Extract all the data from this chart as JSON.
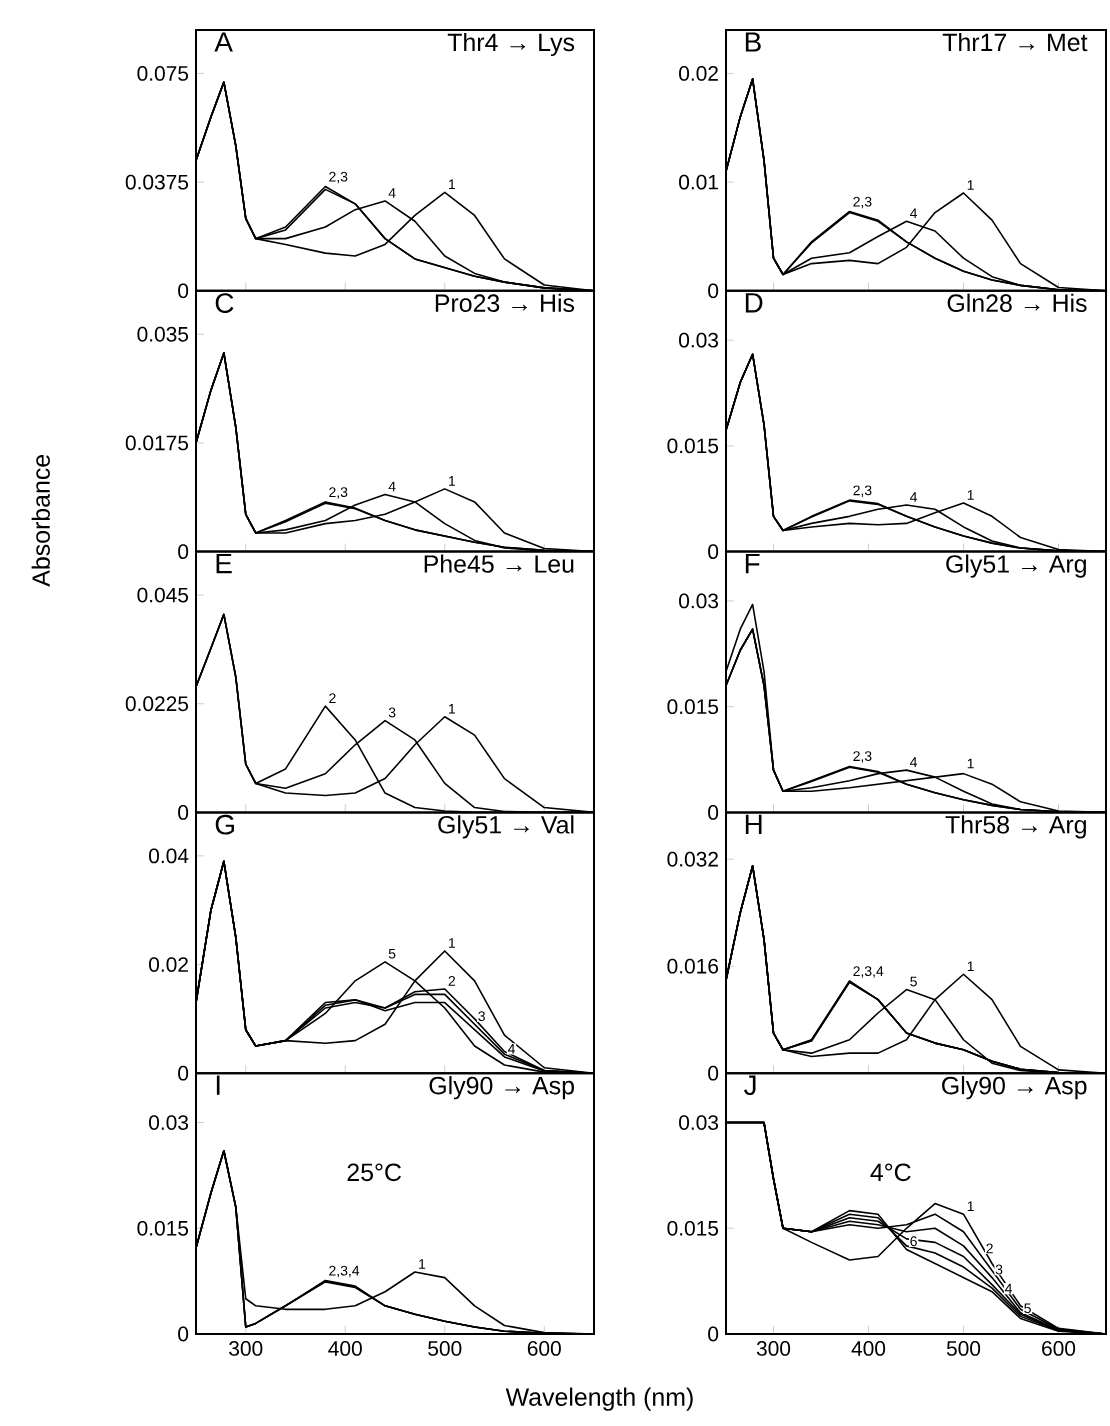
{
  "chart_data": [
    {
      "type": "line",
      "title": "Thr4 → Lys",
      "annotations": [
        "A",
        {
          "text": "2,3",
          "x": 380,
          "y": 0.036
        },
        {
          "text": "4",
          "x": 440,
          "y": 0.031
        },
        {
          "text": "1",
          "x": 500,
          "y": 0.034
        }
      ],
      "x": [
        250,
        265,
        278,
        290,
        300,
        310,
        340,
        380,
        410,
        440,
        470,
        500,
        530,
        560,
        600,
        650
      ],
      "xlim": [
        250,
        650
      ],
      "xticks": [
        300,
        400,
        500,
        600
      ],
      "ylim": [
        0,
        0.09
      ],
      "yticks": [
        0,
        0.0375,
        0.075
      ],
      "tick_labels": "y",
      "series": [
        {
          "color": "#000000",
          "values": [
            0.045,
            0.06,
            0.072,
            0.05,
            0.025,
            0.018,
            0.016,
            0.013,
            0.012,
            0.016,
            0.026,
            0.034,
            0.026,
            0.011,
            0.002,
            0
          ]
        },
        {
          "color": "#000000",
          "values": [
            0.045,
            0.06,
            0.072,
            0.05,
            0.025,
            0.018,
            0.022,
            0.036,
            0.03,
            0.018,
            0.011,
            0.008,
            0.005,
            0.003,
            0.001,
            0
          ]
        },
        {
          "color": "#000000",
          "values": [
            0.045,
            0.06,
            0.072,
            0.05,
            0.025,
            0.018,
            0.021,
            0.035,
            0.03,
            0.018,
            0.011,
            0.008,
            0.005,
            0.003,
            0.001,
            0
          ]
        },
        {
          "color": "#000000",
          "values": [
            0.045,
            0.06,
            0.072,
            0.05,
            0.025,
            0.018,
            0.018,
            0.022,
            0.028,
            0.031,
            0.024,
            0.012,
            0.006,
            0.003,
            0.001,
            0
          ]
        }
      ]
    },
    {
      "type": "line",
      "title": "Thr17 → Met",
      "annotations": [
        "B",
        {
          "text": "2,3",
          "x": 380,
          "y": 0.0073
        },
        {
          "text": "4",
          "x": 440,
          "y": 0.0064
        },
        {
          "text": "1",
          "x": 500,
          "y": 0.009
        }
      ],
      "x": [
        250,
        265,
        278,
        290,
        300,
        310,
        340,
        380,
        410,
        440,
        470,
        500,
        530,
        560,
        600,
        650
      ],
      "xlim": [
        250,
        650
      ],
      "xticks": [
        300,
        400,
        500,
        600
      ],
      "ylim": [
        0,
        0.024
      ],
      "yticks": [
        0,
        0.01,
        0.02
      ],
      "tick_labels": "y",
      "series": [
        {
          "color": "#000000",
          "values": [
            0.011,
            0.016,
            0.0195,
            0.012,
            0.003,
            0.0015,
            0.0025,
            0.0028,
            0.0025,
            0.004,
            0.0072,
            0.009,
            0.0065,
            0.0025,
            0.0003,
            0
          ]
        },
        {
          "color": "#000000",
          "values": [
            0.011,
            0.016,
            0.0195,
            0.012,
            0.003,
            0.0015,
            0.0045,
            0.0073,
            0.0065,
            0.0045,
            0.003,
            0.0018,
            0.001,
            0.0005,
            0.0001,
            0
          ]
        },
        {
          "color": "#000000",
          "values": [
            0.011,
            0.016,
            0.0195,
            0.012,
            0.003,
            0.0015,
            0.0044,
            0.0072,
            0.0064,
            0.0045,
            0.003,
            0.0018,
            0.001,
            0.0005,
            0.0001,
            0
          ]
        },
        {
          "color": "#000000",
          "values": [
            0.011,
            0.016,
            0.0195,
            0.012,
            0.003,
            0.0015,
            0.003,
            0.0035,
            0.005,
            0.0064,
            0.0055,
            0.003,
            0.0013,
            0.0005,
            0.0001,
            0
          ]
        }
      ]
    },
    {
      "type": "line",
      "title": "Pro23 → His",
      "annotations": [
        "C",
        {
          "text": "2,3",
          "x": 380,
          "y": 0.008
        },
        {
          "text": "4",
          "x": 440,
          "y": 0.0092
        },
        {
          "text": "1",
          "x": 500,
          "y": 0.0101
        }
      ],
      "x": [
        250,
        265,
        278,
        290,
        300,
        310,
        340,
        380,
        410,
        440,
        470,
        500,
        530,
        560,
        600,
        650
      ],
      "xlim": [
        250,
        650
      ],
      "xticks": [
        300,
        400,
        500,
        600
      ],
      "ylim": [
        0,
        0.042
      ],
      "yticks": [
        0,
        0.0175,
        0.035
      ],
      "tick_labels": "y",
      "series": [
        {
          "color": "#000000",
          "values": [
            0.0175,
            0.026,
            0.032,
            0.02,
            0.006,
            0.003,
            0.003,
            0.0045,
            0.005,
            0.006,
            0.008,
            0.0101,
            0.008,
            0.003,
            0.0005,
            0
          ]
        },
        {
          "color": "#000000",
          "values": [
            0.0175,
            0.026,
            0.032,
            0.02,
            0.006,
            0.003,
            0.005,
            0.008,
            0.007,
            0.005,
            0.0035,
            0.0025,
            0.0015,
            0.0007,
            0.0002,
            0
          ]
        },
        {
          "color": "#000000",
          "values": [
            0.0175,
            0.026,
            0.032,
            0.02,
            0.006,
            0.003,
            0.0048,
            0.0078,
            0.0069,
            0.005,
            0.0035,
            0.0025,
            0.0015,
            0.0007,
            0.0002,
            0
          ]
        },
        {
          "color": "#000000",
          "values": [
            0.0175,
            0.026,
            0.032,
            0.02,
            0.006,
            0.003,
            0.0035,
            0.005,
            0.0075,
            0.0092,
            0.008,
            0.0045,
            0.0018,
            0.0006,
            0.0001,
            0
          ]
        }
      ]
    },
    {
      "type": "line",
      "title": "Gln28 → His",
      "annotations": [
        "D",
        {
          "text": "2,3",
          "x": 380,
          "y": 0.0073
        },
        {
          "text": "4",
          "x": 440,
          "y": 0.0066
        },
        {
          "text": "1",
          "x": 500,
          "y": 0.0069
        }
      ],
      "x": [
        250,
        265,
        278,
        290,
        300,
        310,
        340,
        380,
        410,
        440,
        470,
        500,
        530,
        560,
        600,
        650
      ],
      "xlim": [
        250,
        650
      ],
      "xticks": [
        300,
        400,
        500,
        600
      ],
      "ylim": [
        0,
        0.037
      ],
      "yticks": [
        0,
        0.015,
        0.03
      ],
      "tick_labels": "y",
      "series": [
        {
          "color": "#000000",
          "values": [
            0.0172,
            0.024,
            0.028,
            0.018,
            0.005,
            0.003,
            0.0035,
            0.004,
            0.0038,
            0.004,
            0.0055,
            0.0069,
            0.005,
            0.002,
            0.0003,
            0
          ]
        },
        {
          "color": "#000000",
          "values": [
            0.0172,
            0.024,
            0.028,
            0.018,
            0.005,
            0.003,
            0.005,
            0.0073,
            0.0068,
            0.005,
            0.0035,
            0.0022,
            0.0012,
            0.0005,
            0.0001,
            0
          ]
        },
        {
          "color": "#000000",
          "values": [
            0.0172,
            0.024,
            0.028,
            0.018,
            0.005,
            0.003,
            0.0049,
            0.0072,
            0.0067,
            0.005,
            0.0035,
            0.0022,
            0.0012,
            0.0005,
            0.0001,
            0
          ]
        },
        {
          "color": "#000000",
          "values": [
            0.0172,
            0.024,
            0.028,
            0.018,
            0.005,
            0.003,
            0.004,
            0.005,
            0.006,
            0.0066,
            0.006,
            0.0035,
            0.0015,
            0.0005,
            0.0001,
            0
          ]
        }
      ]
    },
    {
      "type": "line",
      "title": "Phe45 → Leu",
      "ylabel": "Absorbance",
      "annotations": [
        "E",
        {
          "text": "2",
          "x": 380,
          "y": 0.022
        },
        {
          "text": "3",
          "x": 440,
          "y": 0.019
        },
        {
          "text": "1",
          "x": 500,
          "y": 0.0198
        }
      ],
      "x": [
        250,
        265,
        278,
        290,
        300,
        310,
        340,
        380,
        410,
        440,
        470,
        500,
        530,
        560,
        600,
        650
      ],
      "xlim": [
        250,
        650
      ],
      "xticks": [
        300,
        400,
        500,
        600
      ],
      "ylim": [
        0,
        0.054
      ],
      "yticks": [
        0,
        0.0225,
        0.045
      ],
      "tick_labels": "y",
      "series": [
        {
          "color": "#000000",
          "values": [
            0.026,
            0.034,
            0.041,
            0.028,
            0.01,
            0.006,
            0.004,
            0.0035,
            0.004,
            0.007,
            0.014,
            0.0198,
            0.016,
            0.007,
            0.001,
            0
          ]
        },
        {
          "color": "#000000",
          "values": [
            0.026,
            0.034,
            0.041,
            0.028,
            0.01,
            0.006,
            0.009,
            0.022,
            0.015,
            0.004,
            0.001,
            0.0003,
            0,
            0,
            0,
            0
          ]
        },
        {
          "color": "#000000",
          "values": [
            0.026,
            0.034,
            0.041,
            0.028,
            0.01,
            0.006,
            0.005,
            0.008,
            0.014,
            0.019,
            0.015,
            0.006,
            0.001,
            0.0002,
            0,
            0
          ]
        }
      ]
    },
    {
      "type": "line",
      "title": "Gly51 → Arg",
      "annotations": [
        "F",
        {
          "text": "2,3",
          "x": 380,
          "y": 0.0066
        },
        {
          "text": "4",
          "x": 440,
          "y": 0.006
        },
        {
          "text": "1",
          "x": 500,
          "y": 0.0058
        }
      ],
      "x": [
        250,
        265,
        278,
        290,
        300,
        310,
        340,
        380,
        410,
        440,
        470,
        500,
        530,
        560,
        600,
        650
      ],
      "xlim": [
        250,
        650
      ],
      "xticks": [
        300,
        400,
        500,
        600
      ],
      "ylim": [
        0,
        0.037
      ],
      "yticks": [
        0,
        0.015,
        0.03
      ],
      "tick_labels": "y",
      "series": [
        {
          "color": "#000000",
          "values": [
            0.02,
            0.026,
            0.0295,
            0.02,
            0.006,
            0.003,
            0.003,
            0.0035,
            0.004,
            0.0045,
            0.005,
            0.0055,
            0.004,
            0.0015,
            0.0002,
            0
          ]
        },
        {
          "color": "#000000",
          "values": [
            0.018,
            0.023,
            0.026,
            0.018,
            0.006,
            0.003,
            0.0045,
            0.0065,
            0.0058,
            0.004,
            0.0028,
            0.0018,
            0.001,
            0.0004,
            0.0001,
            0
          ]
        },
        {
          "color": "#000000",
          "values": [
            0.018,
            0.023,
            0.026,
            0.018,
            0.006,
            0.003,
            0.0044,
            0.0064,
            0.0057,
            0.004,
            0.0028,
            0.0018,
            0.001,
            0.0004,
            0.0001,
            0
          ]
        },
        {
          "color": "#000000",
          "values": [
            0.018,
            0.023,
            0.026,
            0.018,
            0.006,
            0.003,
            0.0035,
            0.0045,
            0.0055,
            0.006,
            0.005,
            0.003,
            0.0012,
            0.0004,
            0.0001,
            0
          ]
        }
      ]
    },
    {
      "type": "line",
      "title": "Gly51 → Val",
      "annotations": [
        "G",
        {
          "text": "5",
          "x": 440,
          "y": 0.0205
        },
        {
          "text": "1",
          "x": 500,
          "y": 0.0225
        },
        {
          "text": "2",
          "x": 500,
          "y": 0.0155
        },
        {
          "text": "3",
          "x": 530,
          "y": 0.009
        },
        {
          "text": "4",
          "x": 560,
          "y": 0.003
        }
      ],
      "x": [
        250,
        265,
        278,
        290,
        300,
        310,
        340,
        380,
        410,
        440,
        470,
        500,
        530,
        560,
        600,
        650
      ],
      "xlim": [
        250,
        650
      ],
      "xticks": [
        300,
        400,
        500,
        600
      ],
      "ylim": [
        0,
        0.048
      ],
      "yticks": [
        0,
        0.02,
        0.04
      ],
      "tick_labels": "y",
      "series": [
        {
          "color": "#000000",
          "values": [
            0.013,
            0.03,
            0.039,
            0.025,
            0.008,
            0.005,
            0.006,
            0.0055,
            0.006,
            0.009,
            0.017,
            0.0225,
            0.017,
            0.007,
            0.001,
            0
          ]
        },
        {
          "color": "#000000",
          "values": [
            0.013,
            0.03,
            0.039,
            0.025,
            0.008,
            0.005,
            0.006,
            0.012,
            0.013,
            0.012,
            0.015,
            0.0155,
            0.01,
            0.004,
            0.0005,
            0
          ]
        },
        {
          "color": "#000000",
          "values": [
            0.013,
            0.03,
            0.039,
            0.025,
            0.008,
            0.005,
            0.006,
            0.0125,
            0.0135,
            0.012,
            0.0145,
            0.0145,
            0.009,
            0.0035,
            0.0005,
            0
          ]
        },
        {
          "color": "#000000",
          "values": [
            0.013,
            0.03,
            0.039,
            0.025,
            0.008,
            0.005,
            0.006,
            0.013,
            0.0135,
            0.0115,
            0.013,
            0.013,
            0.008,
            0.003,
            0.0004,
            0
          ]
        },
        {
          "color": "#000000",
          "values": [
            0.013,
            0.03,
            0.039,
            0.025,
            0.008,
            0.005,
            0.006,
            0.011,
            0.017,
            0.0205,
            0.017,
            0.012,
            0.005,
            0.0015,
            0.0002,
            0
          ]
        }
      ]
    },
    {
      "type": "line",
      "title": "Thr58 → Arg",
      "annotations": [
        "H",
        {
          "text": "2,3,4",
          "x": 380,
          "y": 0.0138
        },
        {
          "text": "5",
          "x": 440,
          "y": 0.0125
        },
        {
          "text": "1",
          "x": 500,
          "y": 0.0148
        }
      ],
      "x": [
        250,
        265,
        278,
        290,
        300,
        310,
        340,
        380,
        410,
        440,
        470,
        500,
        530,
        560,
        600,
        650
      ],
      "xlim": [
        250,
        650
      ],
      "xticks": [
        300,
        400,
        500,
        600
      ],
      "ylim": [
        0,
        0.039
      ],
      "yticks": [
        0,
        0.016,
        0.032
      ],
      "tick_labels": "y",
      "series": [
        {
          "color": "#000000",
          "values": [
            0.0139,
            0.024,
            0.031,
            0.02,
            0.006,
            0.0035,
            0.0025,
            0.003,
            0.003,
            0.005,
            0.011,
            0.0148,
            0.011,
            0.004,
            0.0005,
            0
          ]
        },
        {
          "color": "#000000",
          "values": [
            0.0139,
            0.024,
            0.031,
            0.02,
            0.006,
            0.0035,
            0.005,
            0.0138,
            0.011,
            0.006,
            0.0045,
            0.0035,
            0.0018,
            0.0006,
            0.0001,
            0
          ]
        },
        {
          "color": "#000000",
          "values": [
            0.0139,
            0.024,
            0.031,
            0.02,
            0.006,
            0.0035,
            0.0049,
            0.0137,
            0.011,
            0.006,
            0.0045,
            0.0035,
            0.0018,
            0.0006,
            0.0001,
            0
          ]
        },
        {
          "color": "#000000",
          "values": [
            0.0139,
            0.024,
            0.031,
            0.02,
            0.006,
            0.0035,
            0.0048,
            0.0136,
            0.011,
            0.006,
            0.0045,
            0.0035,
            0.0018,
            0.0006,
            0.0001,
            0
          ]
        },
        {
          "color": "#000000",
          "values": [
            0.0139,
            0.024,
            0.031,
            0.02,
            0.006,
            0.0035,
            0.003,
            0.005,
            0.009,
            0.0125,
            0.011,
            0.005,
            0.0015,
            0.0004,
            0,
            0
          ]
        }
      ]
    },
    {
      "type": "line",
      "title": "Gly90 → Asp",
      "subtitle": "25°C",
      "xlabel": "Wavelength (nm)",
      "annotations": [
        "I",
        {
          "text": "2,3,4",
          "x": 380,
          "y": 0.0076
        },
        {
          "text": "1",
          "x": 470,
          "y": 0.0088
        }
      ],
      "x": [
        250,
        265,
        278,
        290,
        300,
        310,
        340,
        380,
        410,
        440,
        470,
        500,
        530,
        560,
        600,
        650
      ],
      "xlim": [
        250,
        650
      ],
      "xticks": [
        300,
        400,
        500,
        600
      ],
      "ylim": [
        0,
        0.037
      ],
      "yticks": [
        0,
        0.015,
        0.03
      ],
      "series": [
        {
          "color": "#000000",
          "values": [
            0.0122,
            0.02,
            0.026,
            0.018,
            0.005,
            0.004,
            0.0035,
            0.0035,
            0.004,
            0.006,
            0.0088,
            0.008,
            0.004,
            0.0012,
            0.0002,
            0
          ]
        },
        {
          "color": "#000000",
          "values": [
            0.0122,
            0.02,
            0.026,
            0.018,
            0.001,
            0.0015,
            0.004,
            0.0076,
            0.0068,
            0.004,
            0.0028,
            0.0018,
            0.001,
            0.0004,
            0.0001,
            0
          ]
        },
        {
          "color": "#000000",
          "values": [
            0.0122,
            0.02,
            0.026,
            0.018,
            0.001,
            0.0015,
            0.004,
            0.0075,
            0.0067,
            0.004,
            0.0028,
            0.0018,
            0.001,
            0.0004,
            0.0001,
            0
          ]
        },
        {
          "color": "#000000",
          "values": [
            0.0122,
            0.02,
            0.026,
            0.018,
            0.001,
            0.0015,
            0.004,
            0.0074,
            0.0066,
            0.004,
            0.0028,
            0.0018,
            0.001,
            0.0004,
            0.0001,
            0
          ]
        }
      ]
    },
    {
      "type": "line",
      "title": "Gly90 → Asp",
      "subtitle": "4°C",
      "annotations": [
        "J",
        {
          "text": "1",
          "x": 500,
          "y": 0.017
        },
        {
          "text": "2",
          "x": 520,
          "y": 0.011
        },
        {
          "text": "3",
          "x": 530,
          "y": 0.008
        },
        {
          "text": "4",
          "x": 540,
          "y": 0.0053
        },
        {
          "text": "5",
          "x": 560,
          "y": 0.0025
        },
        {
          "text": "6",
          "x": 440,
          "y": 0.012
        }
      ],
      "x": [
        250,
        265,
        278,
        290,
        300,
        310,
        340,
        380,
        410,
        440,
        470,
        500,
        530,
        560,
        600,
        650
      ],
      "xlim": [
        250,
        650
      ],
      "xticks": [
        300,
        400,
        500,
        600
      ],
      "ylim": [
        0,
        0.037
      ],
      "yticks": [
        0,
        0.015,
        0.03
      ],
      "series": [
        {
          "color": "#000000",
          "values": [
            0.03,
            0.03,
            0.03,
            0.03,
            0.022,
            0.015,
            0.013,
            0.0105,
            0.011,
            0.015,
            0.0185,
            0.017,
            0.01,
            0.004,
            0.0008,
            0
          ]
        },
        {
          "color": "#000000",
          "values": [
            0.03,
            0.03,
            0.03,
            0.03,
            0.022,
            0.015,
            0.0145,
            0.0155,
            0.015,
            0.0155,
            0.017,
            0.0145,
            0.009,
            0.0035,
            0.0007,
            0
          ]
        },
        {
          "color": "#000000",
          "values": [
            0.03,
            0.03,
            0.03,
            0.03,
            0.022,
            0.015,
            0.0145,
            0.016,
            0.0155,
            0.0145,
            0.015,
            0.0125,
            0.008,
            0.003,
            0.0006,
            0
          ]
        },
        {
          "color": "#000000",
          "values": [
            0.03,
            0.03,
            0.03,
            0.03,
            0.022,
            0.015,
            0.0145,
            0.0165,
            0.016,
            0.0135,
            0.013,
            0.011,
            0.007,
            0.0028,
            0.0005,
            0
          ]
        },
        {
          "color": "#000000",
          "values": [
            0.03,
            0.03,
            0.03,
            0.03,
            0.022,
            0.015,
            0.0145,
            0.017,
            0.0165,
            0.0125,
            0.0115,
            0.0095,
            0.0065,
            0.0025,
            0.0005,
            0
          ]
        },
        {
          "color": "#000000",
          "values": [
            0.03,
            0.03,
            0.03,
            0.03,
            0.022,
            0.015,
            0.0145,
            0.0175,
            0.017,
            0.012,
            0.01,
            0.008,
            0.006,
            0.0022,
            0.0004,
            0
          ]
        }
      ]
    }
  ]
}
